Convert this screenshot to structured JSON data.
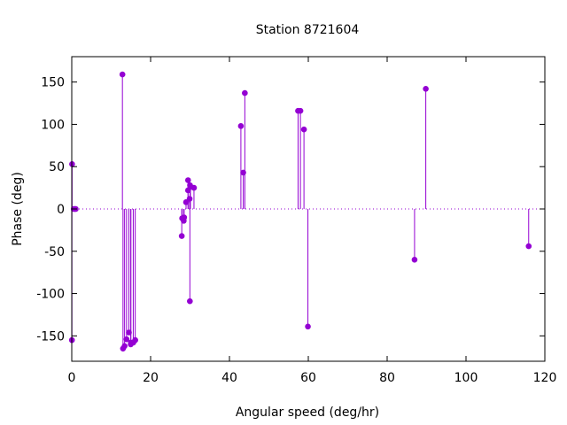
{
  "chart_data": {
    "type": "scatter",
    "style": "impulses-with-points",
    "title": "Station 8721604",
    "xlabel": "Angular speed (deg/hr)",
    "ylabel": "Phase (deg)",
    "xlim": [
      0,
      120
    ],
    "ylim": [
      -180,
      180
    ],
    "x_ticks": [
      0,
      20,
      40,
      60,
      80,
      100,
      120
    ],
    "y_ticks": [
      -150,
      -100,
      -50,
      0,
      50,
      100,
      150
    ],
    "x_tick_labels": [
      "0",
      "20",
      "40",
      "60",
      "80",
      "100",
      "120"
    ],
    "y_tick_labels": [
      "-150",
      "-100",
      "-50",
      "0",
      "50",
      "100",
      "150"
    ],
    "grid": false,
    "zero_line": "dotted",
    "color": "#9400d3",
    "series": [
      {
        "points": [
          {
            "x": 0.04,
            "y": -155
          },
          {
            "x": 0.08,
            "y": 53
          },
          {
            "x": 0.5,
            "y": 0
          },
          {
            "x": 0.8,
            "y": 0
          },
          {
            "x": 1.0,
            "y": 0
          },
          {
            "x": 12.85,
            "y": 159
          },
          {
            "x": 13.0,
            "y": -165
          },
          {
            "x": 13.4,
            "y": -162
          },
          {
            "x": 13.9,
            "y": -154
          },
          {
            "x": 14.5,
            "y": -146
          },
          {
            "x": 14.96,
            "y": -160
          },
          {
            "x": 15.0,
            "y": -158
          },
          {
            "x": 15.6,
            "y": -158
          },
          {
            "x": 16.1,
            "y": -155
          },
          {
            "x": 27.9,
            "y": -32
          },
          {
            "x": 28.0,
            "y": -11
          },
          {
            "x": 28.4,
            "y": -14
          },
          {
            "x": 28.5,
            "y": -10
          },
          {
            "x": 28.99,
            "y": 8
          },
          {
            "x": 29.5,
            "y": 22
          },
          {
            "x": 29.5,
            "y": 34
          },
          {
            "x": 29.9,
            "y": 12
          },
          {
            "x": 29.96,
            "y": -109
          },
          {
            "x": 30.0,
            "y": 28
          },
          {
            "x": 30.1,
            "y": 26
          },
          {
            "x": 31.0,
            "y": 25
          },
          {
            "x": 42.9,
            "y": 98
          },
          {
            "x": 43.5,
            "y": 43
          },
          {
            "x": 43.9,
            "y": 137
          },
          {
            "x": 57.4,
            "y": 116
          },
          {
            "x": 58.0,
            "y": 116
          },
          {
            "x": 58.9,
            "y": 94
          },
          {
            "x": 59.9,
            "y": -139
          },
          {
            "x": 86.95,
            "y": -60
          },
          {
            "x": 89.8,
            "y": 142
          },
          {
            "x": 115.9,
            "y": -44
          }
        ]
      }
    ]
  }
}
